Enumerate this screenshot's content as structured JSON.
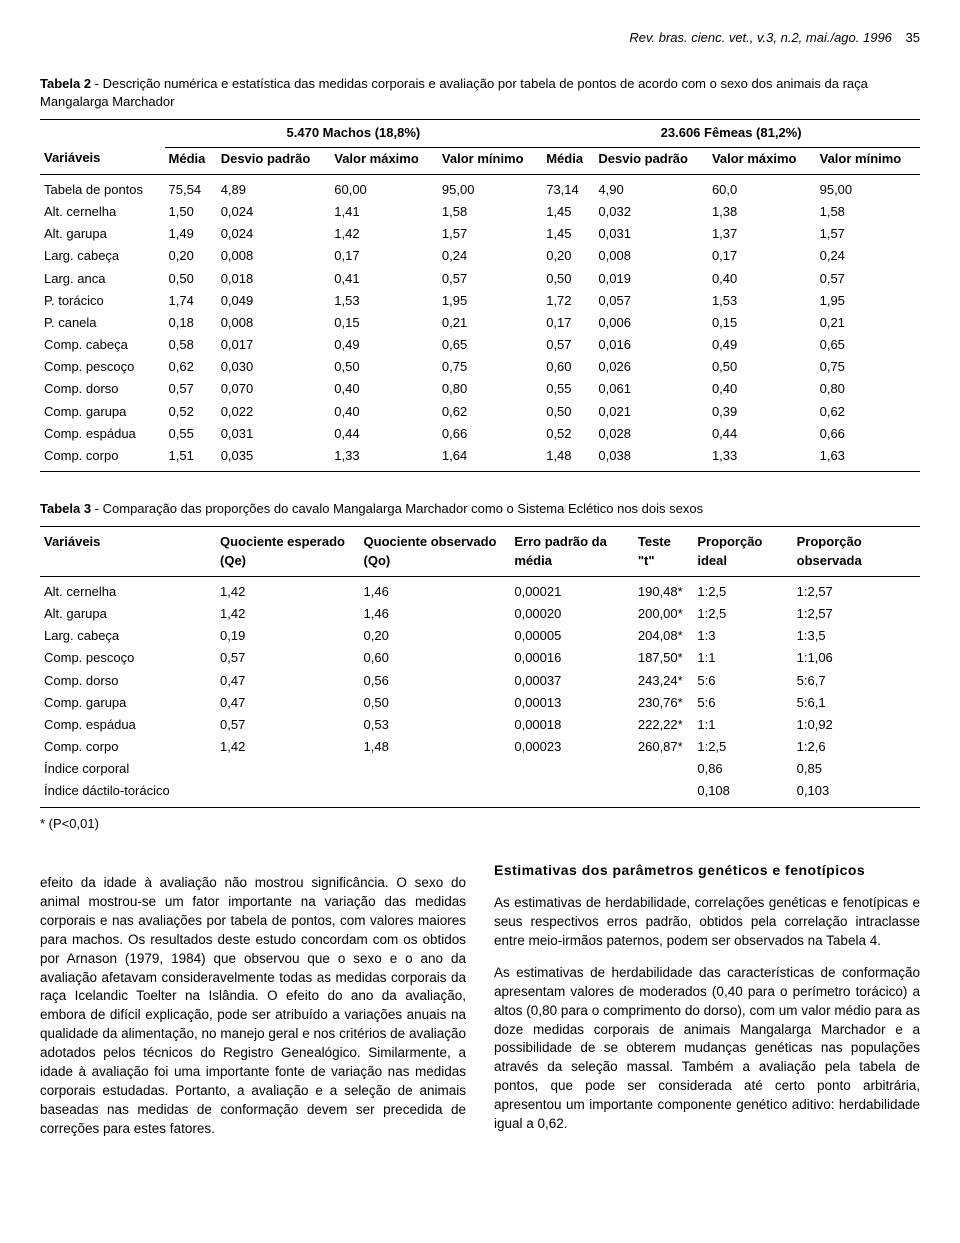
{
  "header": {
    "journal": "Rev. bras. cienc. vet., v.3, n.2, mai./ago. 1996",
    "page": "35"
  },
  "table2": {
    "caption_label": "Tabela 2",
    "caption_text": " - Descrição numérica e estatística das medidas corporais e avaliação por tabela de pontos de acordo com o sexo dos animais da raça Mangalarga Marchador",
    "group_left": "5.470 Machos (18,8%)",
    "group_right": "23.606 Fêmeas (81,2%)",
    "col_var": "Variáveis",
    "col_media": "Média",
    "col_desvio": "Desvio padrão",
    "col_max": "Valor máximo",
    "col_min": "Valor mínimo",
    "rows": [
      {
        "v": "Tabela de pontos",
        "m1": "75,54",
        "d1": "4,89",
        "x1": "60,00",
        "n1": "95,00",
        "m2": "73,14",
        "d2": "4,90",
        "x2": "60,0",
        "n2": "95,00"
      },
      {
        "v": "Alt. cernelha",
        "m1": "1,50",
        "d1": "0,024",
        "x1": "1,41",
        "n1": "1,58",
        "m2": "1,45",
        "d2": "0,032",
        "x2": "1,38",
        "n2": "1,58"
      },
      {
        "v": "Alt. garupa",
        "m1": "1,49",
        "d1": "0,024",
        "x1": "1,42",
        "n1": "1,57",
        "m2": "1,45",
        "d2": "0,031",
        "x2": "1,37",
        "n2": "1,57"
      },
      {
        "v": "Larg. cabeça",
        "m1": "0,20",
        "d1": "0,008",
        "x1": "0,17",
        "n1": "0,24",
        "m2": "0,20",
        "d2": "0,008",
        "x2": "0,17",
        "n2": "0,24"
      },
      {
        "v": "Larg. anca",
        "m1": "0,50",
        "d1": "0,018",
        "x1": "0,41",
        "n1": "0,57",
        "m2": "0,50",
        "d2": "0,019",
        "x2": "0,40",
        "n2": "0,57"
      },
      {
        "v": "P. torácico",
        "m1": "1,74",
        "d1": "0,049",
        "x1": "1,53",
        "n1": "1,95",
        "m2": "1,72",
        "d2": "0,057",
        "x2": "1,53",
        "n2": "1,95"
      },
      {
        "v": "P. canela",
        "m1": "0,18",
        "d1": "0,008",
        "x1": "0,15",
        "n1": "0,21",
        "m2": "0,17",
        "d2": "0,006",
        "x2": "0,15",
        "n2": "0,21"
      },
      {
        "v": "Comp. cabeça",
        "m1": "0,58",
        "d1": "0,017",
        "x1": "0,49",
        "n1": "0,65",
        "m2": "0,57",
        "d2": "0,016",
        "x2": "0,49",
        "n2": "0,65"
      },
      {
        "v": "Comp. pescoço",
        "m1": "0,62",
        "d1": "0,030",
        "x1": "0,50",
        "n1": "0,75",
        "m2": "0,60",
        "d2": "0,026",
        "x2": "0,50",
        "n2": "0,75"
      },
      {
        "v": "Comp. dorso",
        "m1": "0,57",
        "d1": "0,070",
        "x1": "0,40",
        "n1": "0,80",
        "m2": "0,55",
        "d2": "0,061",
        "x2": "0,40",
        "n2": "0,80"
      },
      {
        "v": "Comp. garupa",
        "m1": "0,52",
        "d1": "0,022",
        "x1": "0,40",
        "n1": "0,62",
        "m2": "0,50",
        "d2": "0,021",
        "x2": "0,39",
        "n2": "0,62"
      },
      {
        "v": "Comp. espádua",
        "m1": "0,55",
        "d1": "0,031",
        "x1": "0,44",
        "n1": "0,66",
        "m2": "0,52",
        "d2": "0,028",
        "x2": "0,44",
        "n2": "0,66"
      },
      {
        "v": "Comp. corpo",
        "m1": "1,51",
        "d1": "0,035",
        "x1": "1,33",
        "n1": "1,64",
        "m2": "1,48",
        "d2": "0,038",
        "x2": "1,33",
        "n2": "1,63"
      }
    ]
  },
  "table3": {
    "caption_label": "Tabela 3",
    "caption_text": " - Comparação das proporções do cavalo Mangalarga Marchador como o Sistema Eclético nos dois sexos",
    "h_var": "Variáveis",
    "h_qe": "Quociente esperado (Qe)",
    "h_qo": "Quociente observado (Qo)",
    "h_erro": "Erro padrão da média",
    "h_t": "Teste \"t\"",
    "h_pi": "Proporção ideal",
    "h_po": "Proporção observada",
    "rows": [
      {
        "v": "Alt. cernelha",
        "qe": "1,42",
        "qo": "1,46",
        "e": "0,00021",
        "t": "190,48*",
        "pi": "1:2,5",
        "po": "1:2,57"
      },
      {
        "v": "Alt. garupa",
        "qe": "1,42",
        "qo": "1,46",
        "e": "0,00020",
        "t": "200,00*",
        "pi": "1:2,5",
        "po": "1:2,57"
      },
      {
        "v": "Larg. cabeça",
        "qe": "0,19",
        "qo": "0,20",
        "e": "0,00005",
        "t": "204,08*",
        "pi": "1:3",
        "po": "1:3,5"
      },
      {
        "v": "Comp. pescoço",
        "qe": "0,57",
        "qo": "0,60",
        "e": "0,00016",
        "t": "187,50*",
        "pi": "1:1",
        "po": "1:1,06"
      },
      {
        "v": "Comp. dorso",
        "qe": "0,47",
        "qo": "0,56",
        "e": "0,00037",
        "t": "243,24*",
        "pi": "5:6",
        "po": "5:6,7"
      },
      {
        "v": "Comp. garupa",
        "qe": "0,47",
        "qo": "0,50",
        "e": "0,00013",
        "t": "230,76*",
        "pi": "5:6",
        "po": "5:6,1"
      },
      {
        "v": "Comp. espádua",
        "qe": "0,57",
        "qo": "0,53",
        "e": "0,00018",
        "t": "222,22*",
        "pi": "1:1",
        "po": "1:0,92"
      },
      {
        "v": "Comp. corpo",
        "qe": "1,42",
        "qo": "1,48",
        "e": "0,00023",
        "t": "260,87*",
        "pi": "1:2,5",
        "po": "1:2,6"
      },
      {
        "v": "Índice corporal",
        "qe": "",
        "qo": "",
        "e": "",
        "t": "",
        "pi": "0,86",
        "po": "0,85"
      },
      {
        "v": "Índice dáctilo-torácico",
        "qe": "",
        "qo": "",
        "e": "",
        "t": "",
        "pi": "0,108",
        "po": "0,103"
      }
    ],
    "footnote": "* (P<0,01)"
  },
  "body": {
    "left_p": "efeito da idade à avaliação não mostrou significância. O sexo do animal mostrou-se um fator importante na variação das medidas corporais e nas avaliações por tabela de pontos, com valores maiores para machos. Os resultados deste estudo concordam com os obtidos por Arnason (1979, 1984) que observou que o sexo e o ano da avaliação afetavam consideravelmente todas as medidas corporais da raça Icelandic Toelter na Islândia. O efeito do ano da avaliação, embora de difícil explicação, pode ser atribuído a variações anuais na qualidade da alimentação, no manejo geral e nos critérios de avaliação adotados pelos técnicos do Registro Genealógico. Similarmente, a idade à avaliação foi uma importante fonte de variação nas medidas corporais estudadas. Portanto, a avaliação e a seleção de animais baseadas nas medidas de conformação devem ser precedida de correções para estes fatores.",
    "right_head": "Estimativas dos parâmetros genéticos e fenotípicos",
    "right_p1": "As estimativas de herdabilidade, correlações genéticas e fenotípicas e seus respectivos erros padrão, obtidos pela correlação intraclasse entre meio-irmãos paternos, podem ser observados na Tabela 4.",
    "right_p2": "As estimativas de herdabilidade das características de conformação apresentam valores de moderados (0,40 para o perímetro torácico) a altos (0,80 para o comprimento do dorso), com um valor médio para as doze medidas corporais de animais Mangalarga Marchador e a possibilidade de se obterem mudanças genéticas nas populações através da seleção massal. Também a avaliação pela tabela de pontos, que pode ser considerada até certo ponto arbitrária, apresentou um importante componente genético aditivo: herdabilidade igual a 0,62."
  }
}
